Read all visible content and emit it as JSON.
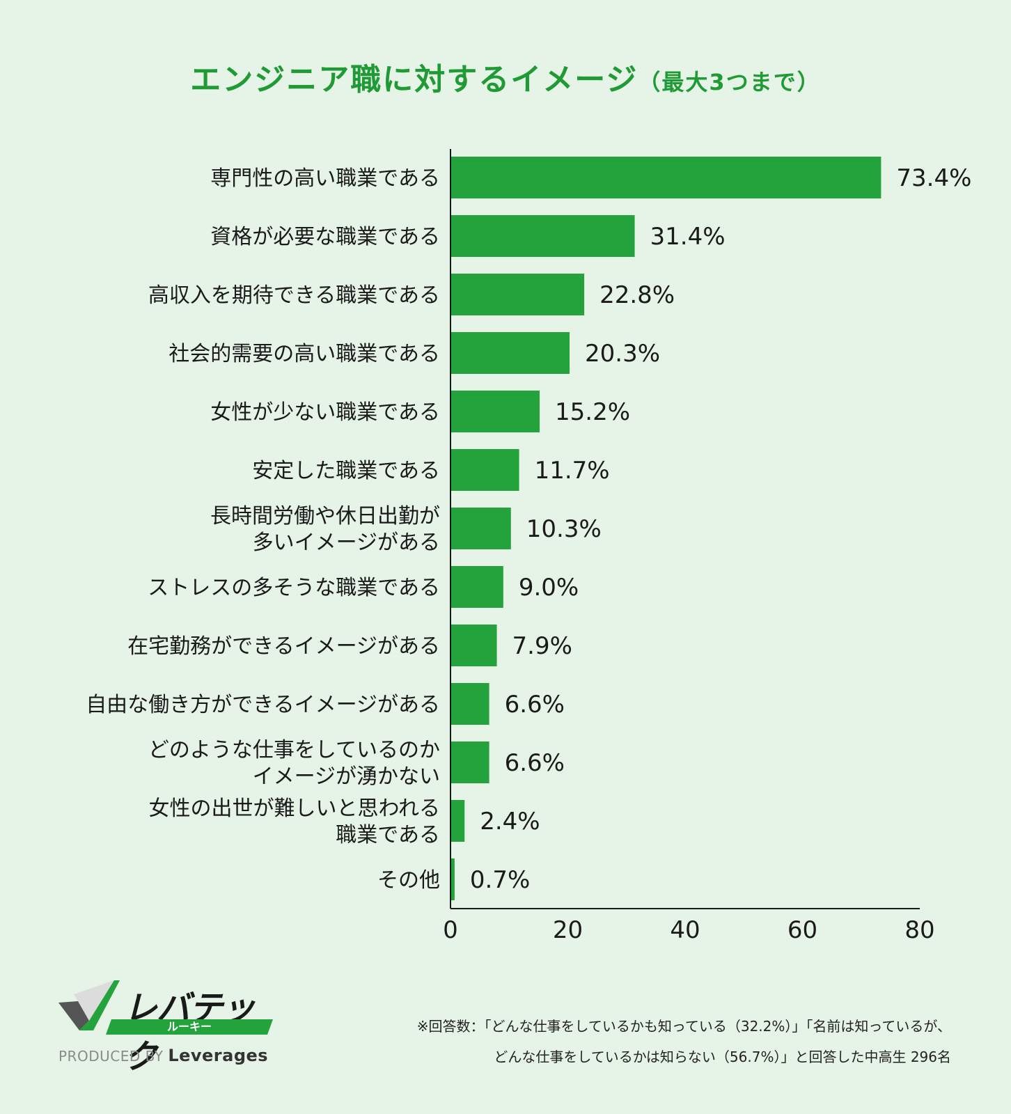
{
  "title": {
    "main": "エンジニア職に対するイメージ",
    "sub": "（最大3つまで）"
  },
  "chart_data": {
    "type": "bar",
    "orientation": "horizontal",
    "categories": [
      "専門性の高い職業である",
      "資格が必要な職業である",
      "高収入を期待できる職業である",
      "社会的需要の高い職業である",
      "女性が少ない職業である",
      "安定した職業である",
      "長時間労働や休日出勤が\n多いイメージがある",
      "ストレスの多そうな職業である",
      "在宅勤務ができるイメージがある",
      "自由な働き方ができるイメージがある",
      "どのような仕事をしているのか\nイメージが湧かない",
      "女性の出世が難しいと思われる\n職業である",
      "その他"
    ],
    "values": [
      73.4,
      31.4,
      22.8,
      20.3,
      15.2,
      11.7,
      10.3,
      9.0,
      7.9,
      6.6,
      6.6,
      2.4,
      0.7
    ],
    "value_labels": [
      "73.4%",
      "31.4%",
      "22.8%",
      "20.3%",
      "15.2%",
      "11.7%",
      "10.3%",
      "9.0%",
      "7.9%",
      "6.6%",
      "6.6%",
      "2.4%",
      "0.7%"
    ],
    "xlim": [
      0,
      80
    ],
    "xticks": [
      0,
      20,
      40,
      60,
      80
    ],
    "bar_color": "#24a33c",
    "grid": false
  },
  "footnote": {
    "line1": "※回答数：「どんな仕事をしているかも知っている（32.2%）」「名前は知っているが、",
    "line2": "どんな仕事をしているかは知らない（56.7%）」と回答した中高生 296名"
  },
  "logo": {
    "brand": "レバテック",
    "tagline": "ルーキー",
    "produced_by": "PRODUCED BY",
    "company": "Leverages"
  },
  "colors": {
    "background": "#e6f4e7",
    "title": "#1f9a35",
    "bar": "#24a33c"
  }
}
